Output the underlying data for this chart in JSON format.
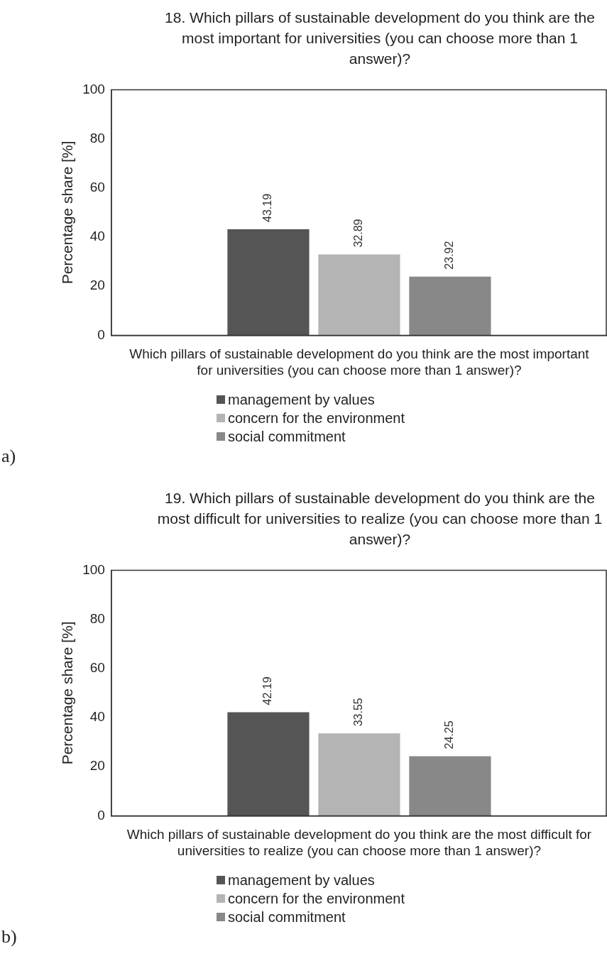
{
  "chart_data": [
    {
      "type": "bar",
      "title": "18. Which pillars of sustainable development do you think are the most important for universities (you can choose more than 1 answer)?",
      "ylabel": "Percentage share [%]",
      "categories": [
        "Which pillars of sustainable development do you think are the most important for universities (you can choose more than 1 answer)?"
      ],
      "series": [
        {
          "name": "management by values",
          "color": "#555555",
          "values": [
            43.19
          ]
        },
        {
          "name": "concern for the environment",
          "color": "#b4b4b4",
          "values": [
            32.89
          ]
        },
        {
          "name": "social commitment",
          "color": "#888888",
          "values": [
            23.92
          ]
        }
      ],
      "ylim": [
        0,
        100
      ],
      "yticks": [
        0,
        20,
        40,
        60,
        80,
        100
      ],
      "grid": false,
      "legend": "bottom",
      "data_labels": true,
      "annotations": [
        "a)"
      ]
    },
    {
      "type": "bar",
      "title": "19. Which pillars of sustainable development do you think are the most difficult for universities to realize (you can choose more than 1 answer)?",
      "ylabel": "Percentage share [%]",
      "categories": [
        "Which pillars of sustainable development do you think are the most difficult for universities to realize (you can choose more than 1 answer)?"
      ],
      "series": [
        {
          "name": "management by values",
          "color": "#555555",
          "values": [
            42.19
          ]
        },
        {
          "name": "concern for the environment",
          "color": "#b4b4b4",
          "values": [
            33.55
          ]
        },
        {
          "name": "social commitment",
          "color": "#888888",
          "values": [
            24.25
          ]
        }
      ],
      "ylim": [
        0,
        100
      ],
      "yticks": [
        0,
        20,
        40,
        60,
        80,
        100
      ],
      "grid": false,
      "legend": "bottom",
      "data_labels": true,
      "annotations": [
        "b)"
      ]
    }
  ]
}
